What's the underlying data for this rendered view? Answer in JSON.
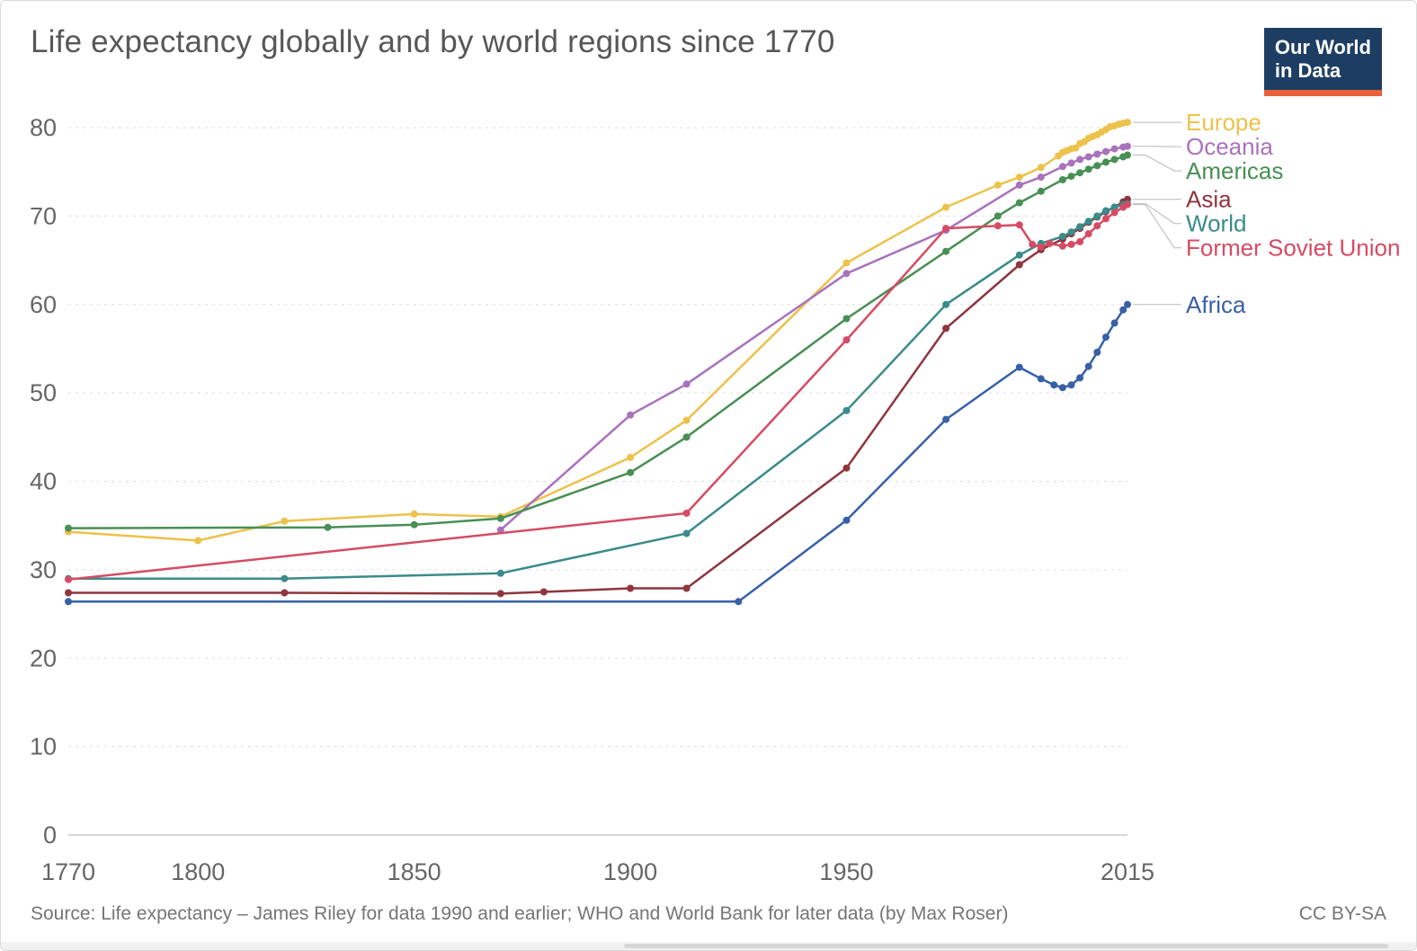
{
  "header": {
    "title": "Life expectancy globally and by world regions since 1770"
  },
  "logo": {
    "line1": "Our World",
    "line2": "in Data",
    "bg_color": "#1d3d63",
    "accent_color": "#e8613c"
  },
  "footer": {
    "source": "Source: Life expectancy – James Riley for data 1990 and earlier; WHO and World Bank for later data (by Max Roser)",
    "license": "CC BY-SA"
  },
  "chart_data": {
    "type": "line",
    "title": "Life expectancy globally and by world regions since 1770",
    "xlabel": "",
    "ylabel": "",
    "xlim": [
      1770,
      2015
    ],
    "ylim": [
      0,
      80
    ],
    "xticks": [
      1770,
      1800,
      1850,
      1900,
      1950,
      2015
    ],
    "yticks": [
      0,
      10,
      20,
      30,
      40,
      50,
      60,
      70,
      80
    ],
    "grid": "horizontal-dashed",
    "legend_position": "right",
    "marker": "circle",
    "series": [
      {
        "name": "Europe",
        "color": "#edc24b",
        "points": [
          [
            1770,
            34.3
          ],
          [
            1800,
            33.3
          ],
          [
            1820,
            35.5
          ],
          [
            1850,
            36.3
          ],
          [
            1870,
            36.0
          ],
          [
            1900,
            42.7
          ],
          [
            1913,
            46.9
          ],
          [
            1950,
            64.7
          ],
          [
            1973,
            71.0
          ],
          [
            1985,
            73.5
          ],
          [
            1990,
            74.4
          ],
          [
            1995,
            75.5
          ],
          [
            1999,
            76.8
          ],
          [
            2000,
            77.2
          ],
          [
            2001,
            77.4
          ],
          [
            2002,
            77.6
          ],
          [
            2003,
            77.7
          ],
          [
            2004,
            78.2
          ],
          [
            2005,
            78.4
          ],
          [
            2006,
            78.8
          ],
          [
            2007,
            79.0
          ],
          [
            2008,
            79.2
          ],
          [
            2009,
            79.5
          ],
          [
            2010,
            79.8
          ],
          [
            2011,
            80.1
          ],
          [
            2012,
            80.2
          ],
          [
            2013,
            80.4
          ],
          [
            2014,
            80.5
          ],
          [
            2015,
            80.6
          ]
        ]
      },
      {
        "name": "Oceania",
        "color": "#a972bc",
        "points": [
          [
            1870,
            34.5
          ],
          [
            1900,
            47.5
          ],
          [
            1913,
            51.0
          ],
          [
            1950,
            63.5
          ],
          [
            1973,
            68.4
          ],
          [
            1990,
            73.5
          ],
          [
            1995,
            74.4
          ],
          [
            2000,
            75.6
          ],
          [
            2002,
            76.0
          ],
          [
            2004,
            76.4
          ],
          [
            2006,
            76.7
          ],
          [
            2008,
            77.0
          ],
          [
            2010,
            77.3
          ],
          [
            2012,
            77.6
          ],
          [
            2014,
            77.8
          ],
          [
            2015,
            77.9
          ]
        ]
      },
      {
        "name": "Americas",
        "color": "#488f54",
        "points": [
          [
            1770,
            34.7
          ],
          [
            1830,
            34.8
          ],
          [
            1850,
            35.1
          ],
          [
            1870,
            35.8
          ],
          [
            1900,
            41.0
          ],
          [
            1913,
            45.0
          ],
          [
            1950,
            58.4
          ],
          [
            1973,
            66.0
          ],
          [
            1985,
            70.0
          ],
          [
            1990,
            71.5
          ],
          [
            1995,
            72.8
          ],
          [
            2000,
            74.1
          ],
          [
            2002,
            74.5
          ],
          [
            2004,
            74.9
          ],
          [
            2006,
            75.3
          ],
          [
            2008,
            75.7
          ],
          [
            2010,
            76.1
          ],
          [
            2012,
            76.4
          ],
          [
            2014,
            76.7
          ],
          [
            2015,
            76.9
          ]
        ]
      },
      {
        "name": "Asia",
        "color": "#8f353e",
        "points": [
          [
            1770,
            27.4
          ],
          [
            1820,
            27.4
          ],
          [
            1870,
            27.3
          ],
          [
            1880,
            27.5
          ],
          [
            1900,
            27.9
          ],
          [
            1913,
            27.9
          ],
          [
            1950,
            41.5
          ],
          [
            1973,
            57.3
          ],
          [
            1990,
            64.5
          ],
          [
            1995,
            66.2
          ],
          [
            2000,
            67.4
          ],
          [
            2002,
            68.0
          ],
          [
            2004,
            68.6
          ],
          [
            2006,
            69.3
          ],
          [
            2008,
            69.9
          ],
          [
            2010,
            70.5
          ],
          [
            2012,
            71.0
          ],
          [
            2014,
            71.6
          ],
          [
            2015,
            71.9
          ]
        ]
      },
      {
        "name": "World",
        "color": "#3a8b8b",
        "points": [
          [
            1770,
            29.0
          ],
          [
            1820,
            29.0
          ],
          [
            1870,
            29.6
          ],
          [
            1913,
            34.1
          ],
          [
            1950,
            48.0
          ],
          [
            1973,
            60.0
          ],
          [
            1990,
            65.6
          ],
          [
            1995,
            66.9
          ],
          [
            2000,
            67.7
          ],
          [
            2002,
            68.2
          ],
          [
            2004,
            68.8
          ],
          [
            2006,
            69.4
          ],
          [
            2008,
            70.0
          ],
          [
            2010,
            70.6
          ],
          [
            2012,
            71.0
          ],
          [
            2014,
            71.3
          ],
          [
            2015,
            71.4
          ]
        ]
      },
      {
        "name": "Former Soviet Union",
        "color": "#d64b64",
        "points": [
          [
            1770,
            28.9
          ],
          [
            1913,
            36.4
          ],
          [
            1950,
            56.0
          ],
          [
            1973,
            68.6
          ],
          [
            1985,
            68.9
          ],
          [
            1990,
            69.0
          ],
          [
            1993,
            66.8
          ],
          [
            1995,
            66.5
          ],
          [
            1997,
            66.9
          ],
          [
            2000,
            66.6
          ],
          [
            2002,
            66.8
          ],
          [
            2004,
            67.1
          ],
          [
            2006,
            68.0
          ],
          [
            2008,
            68.9
          ],
          [
            2010,
            69.7
          ],
          [
            2012,
            70.4
          ],
          [
            2014,
            71.0
          ],
          [
            2015,
            71.3
          ]
        ]
      },
      {
        "name": "Africa",
        "color": "#3860a8",
        "points": [
          [
            1770,
            26.4
          ],
          [
            1925,
            26.4
          ],
          [
            1950,
            35.6
          ],
          [
            1973,
            47.0
          ],
          [
            1990,
            52.9
          ],
          [
            1995,
            51.6
          ],
          [
            1998,
            50.9
          ],
          [
            2000,
            50.6
          ],
          [
            2002,
            50.9
          ],
          [
            2004,
            51.7
          ],
          [
            2006,
            53.0
          ],
          [
            2008,
            54.6
          ],
          [
            2010,
            56.3
          ],
          [
            2012,
            57.9
          ],
          [
            2014,
            59.4
          ],
          [
            2015,
            60.0
          ]
        ]
      }
    ]
  }
}
